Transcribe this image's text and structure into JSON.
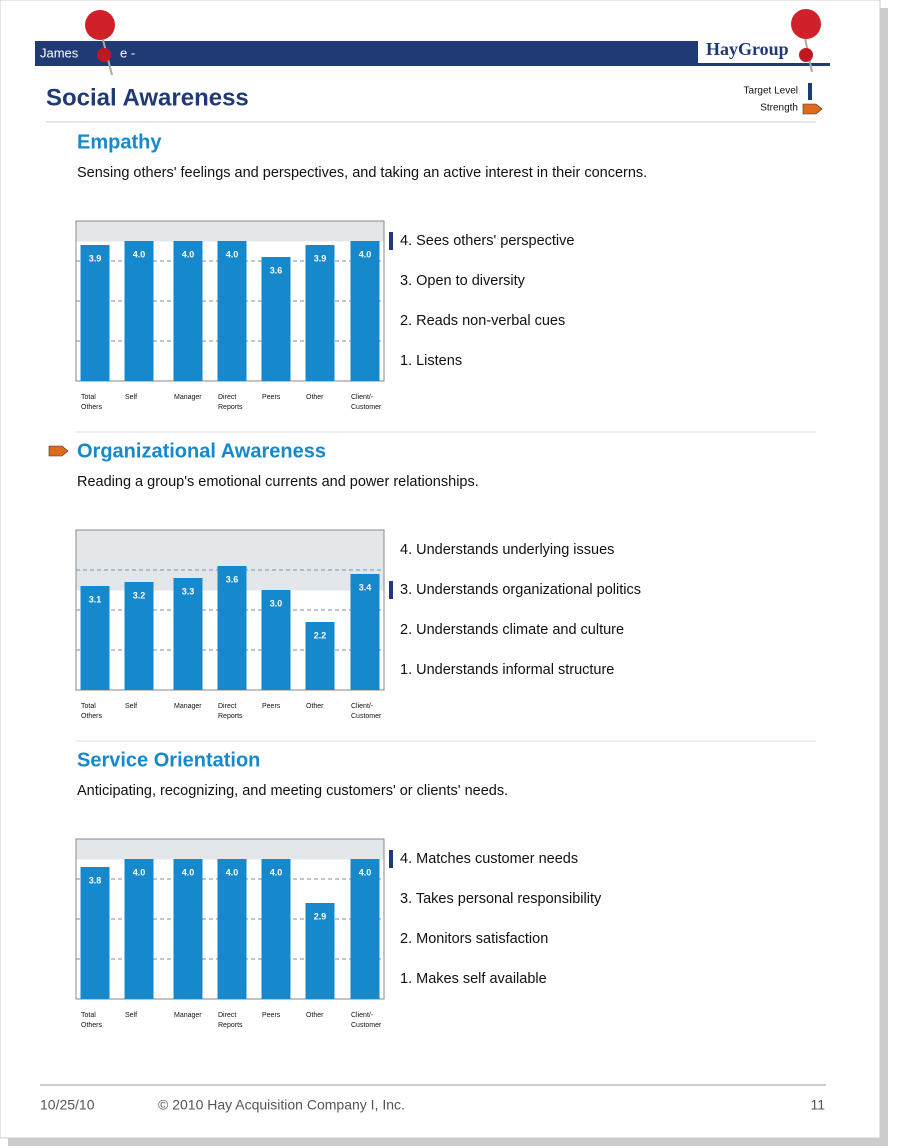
{
  "header": {
    "name": "James",
    "name_end": "e  -",
    "logo": "HayGroup",
    "title": "Social Awareness",
    "legend_target": "Target Level",
    "legend_strength": "Strength"
  },
  "chart_data": [
    {
      "type": "bar",
      "title": "Empathy",
      "subtitle": "Sensing others' feelings and perspectives, and taking an active interest in their concerns.",
      "categories": [
        "Total Others",
        "Self",
        "Manager",
        "Direct Reports",
        "Peers",
        "Other",
        "Client/- Customer"
      ],
      "values": [
        3.9,
        4.0,
        4.0,
        4.0,
        3.6,
        3.9,
        4.0
      ],
      "value_labels": [
        "3.9",
        "4.0",
        "4.0",
        "4.0",
        "3.6",
        "3.9",
        "4.0"
      ],
      "color": "#1589cc",
      "ylim": [
        0.5,
        4.5
      ],
      "target_level": 4,
      "strength": false,
      "yticks": [
        {
          "value": 4,
          "label": "4. Sees others' perspective"
        },
        {
          "value": 3,
          "label": "3. Open to diversity"
        },
        {
          "value": 2,
          "label": "2. Reads non-verbal cues"
        },
        {
          "value": 1,
          "label": "1. Listens"
        }
      ]
    },
    {
      "type": "bar",
      "title": "Organizational Awareness",
      "subtitle": "Reading a group's emotional currents and power relationships.",
      "categories": [
        "Total Others",
        "Self",
        "Manager",
        "Direct Reports",
        "Peers",
        "Other",
        "Client/- Customer"
      ],
      "values": [
        3.1,
        3.2,
        3.3,
        3.6,
        3.0,
        2.2,
        3.4
      ],
      "value_labels": [
        "3.1",
        "3.2",
        "3.3",
        "3.6",
        "3.0",
        "2.2",
        "3.4"
      ],
      "color": "#1589cc",
      "ylim": [
        0.5,
        4.5
      ],
      "target_level": 3,
      "strength": true,
      "yticks": [
        {
          "value": 4,
          "label": "4. Understands underlying issues"
        },
        {
          "value": 3,
          "label": "3. Understands organizational politics"
        },
        {
          "value": 2,
          "label": "2. Understands climate and culture"
        },
        {
          "value": 1,
          "label": "1. Understands informal structure"
        }
      ]
    },
    {
      "type": "bar",
      "title": "Service Orientation",
      "subtitle": "Anticipating, recognizing, and meeting customers' or clients' needs.",
      "categories": [
        "Total Others",
        "Self",
        "Manager",
        "Direct Reports",
        "Peers",
        "Other",
        "Client/- Customer"
      ],
      "values": [
        3.8,
        4.0,
        4.0,
        4.0,
        4.0,
        2.9,
        4.0
      ],
      "value_labels": [
        "3.8",
        "4.0",
        "4.0",
        "4.0",
        "4.0",
        "2.9",
        "4.0"
      ],
      "color": "#1589cc",
      "ylim": [
        0.5,
        4.5
      ],
      "target_level": 4,
      "strength": false,
      "yticks": [
        {
          "value": 4,
          "label": "4. Matches customer needs"
        },
        {
          "value": 3,
          "label": "3. Takes personal responsibility"
        },
        {
          "value": 2,
          "label": "2. Monitors satisfaction"
        },
        {
          "value": 1,
          "label": "1. Makes self available"
        }
      ]
    }
  ],
  "footer": {
    "date": "10/25/10",
    "copyright": "© 2010 Hay Acquisition Company I, Inc.",
    "page": "11"
  }
}
